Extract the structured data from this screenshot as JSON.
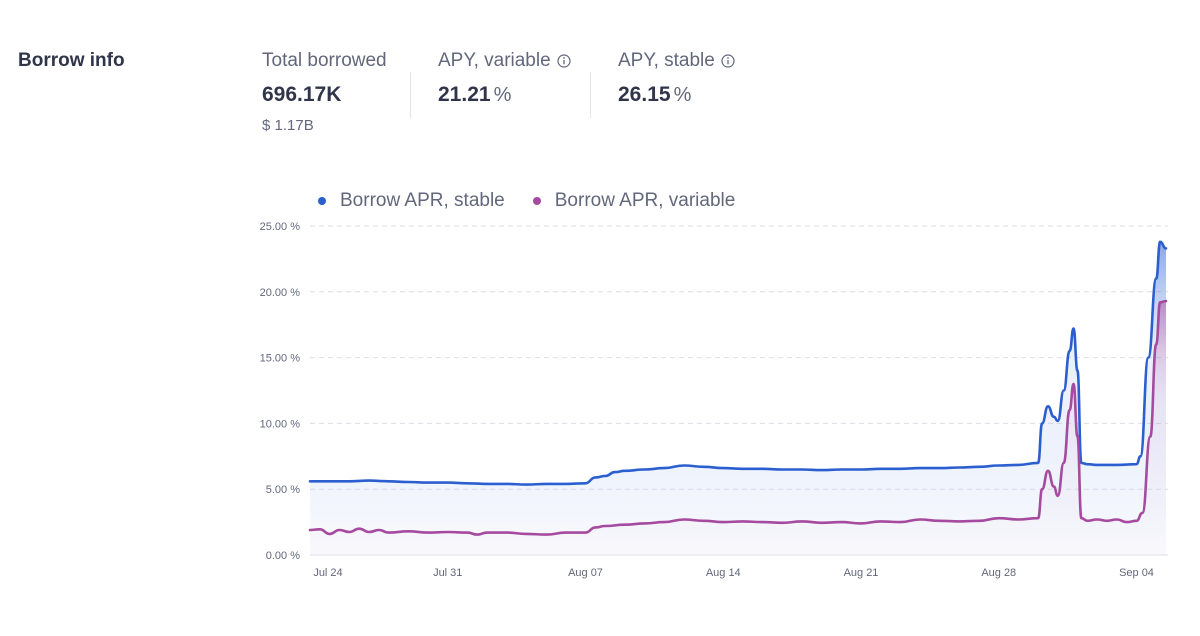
{
  "section": {
    "title": "Borrow info"
  },
  "stats": {
    "total_borrowed": {
      "label": "Total borrowed",
      "value": "696.17K",
      "sub": "$ 1.17B"
    },
    "apy_variable": {
      "label": "APY, variable",
      "value": "21.21",
      "unit": "%",
      "icon": "info-icon"
    },
    "apy_stable": {
      "label": "APY, stable",
      "value": "26.15",
      "unit": "%",
      "icon": "info-icon"
    }
  },
  "colors": {
    "stable": "#2b5fcf",
    "variable": "#a54a9e",
    "text": "#303549",
    "muted": "#62677b"
  },
  "chart_data": {
    "type": "line",
    "title": "",
    "xlabel": "",
    "ylabel": "",
    "ylim": [
      0,
      25
    ],
    "y_ticks": [
      "25.00 %",
      "20.00 %",
      "15.00 %",
      "10.00 %",
      "5.00 %",
      "0.00 %"
    ],
    "y_tick_values": [
      25,
      20,
      15,
      10,
      5,
      0
    ],
    "x_ticks": [
      "Jul 24",
      "Jul 31",
      "Aug 07",
      "Aug 14",
      "Aug 21",
      "Aug 28",
      "Sep 04"
    ],
    "x_tick_days": [
      0,
      7,
      14,
      21,
      28,
      35,
      42
    ],
    "x_range_days": [
      0,
      43.6
    ],
    "grid": true,
    "legend_position": "top-left",
    "series": [
      {
        "name": "Borrow APR, stable",
        "color": "#2b5fcf",
        "points": [
          [
            0,
            5.6
          ],
          [
            1,
            5.6
          ],
          [
            2,
            5.6
          ],
          [
            3,
            5.65
          ],
          [
            4,
            5.6
          ],
          [
            5,
            5.55
          ],
          [
            6,
            5.5
          ],
          [
            7,
            5.5
          ],
          [
            8,
            5.45
          ],
          [
            9,
            5.4
          ],
          [
            10,
            5.4
          ],
          [
            11,
            5.35
          ],
          [
            12,
            5.4
          ],
          [
            13,
            5.4
          ],
          [
            14,
            5.45
          ],
          [
            14.5,
            5.9
          ],
          [
            15,
            6.0
          ],
          [
            15.5,
            6.3
          ],
          [
            16,
            6.4
          ],
          [
            17,
            6.5
          ],
          [
            18,
            6.6
          ],
          [
            19,
            6.8
          ],
          [
            20,
            6.7
          ],
          [
            21,
            6.6
          ],
          [
            22,
            6.55
          ],
          [
            23,
            6.55
          ],
          [
            24,
            6.5
          ],
          [
            25,
            6.5
          ],
          [
            26,
            6.45
          ],
          [
            27,
            6.5
          ],
          [
            28,
            6.5
          ],
          [
            29,
            6.55
          ],
          [
            30,
            6.55
          ],
          [
            31,
            6.6
          ],
          [
            32,
            6.6
          ],
          [
            33,
            6.65
          ],
          [
            34,
            6.7
          ],
          [
            35,
            6.8
          ],
          [
            36,
            6.85
          ],
          [
            37,
            7.0
          ],
          [
            37.2,
            10.0
          ],
          [
            37.5,
            11.3
          ],
          [
            37.8,
            10.5
          ],
          [
            38,
            10.2
          ],
          [
            38.3,
            12.5
          ],
          [
            38.6,
            15.5
          ],
          [
            38.8,
            17.2
          ],
          [
            39,
            14.0
          ],
          [
            39.2,
            7.0
          ],
          [
            39.5,
            6.9
          ],
          [
            40,
            6.85
          ],
          [
            41,
            6.85
          ],
          [
            42,
            6.9
          ],
          [
            42.2,
            7.5
          ],
          [
            42.6,
            15.0
          ],
          [
            43,
            21.0
          ],
          [
            43.2,
            23.8
          ],
          [
            43.5,
            23.3
          ]
        ]
      },
      {
        "name": "Borrow APR, variable",
        "color": "#a54a9e",
        "points": [
          [
            0,
            1.9
          ],
          [
            0.5,
            1.95
          ],
          [
            1,
            1.6
          ],
          [
            1.5,
            1.9
          ],
          [
            2,
            1.75
          ],
          [
            2.5,
            2.0
          ],
          [
            3,
            1.75
          ],
          [
            3.5,
            1.9
          ],
          [
            4,
            1.7
          ],
          [
            5,
            1.8
          ],
          [
            6,
            1.7
          ],
          [
            7,
            1.75
          ],
          [
            8,
            1.7
          ],
          [
            8.5,
            1.55
          ],
          [
            9,
            1.7
          ],
          [
            10,
            1.7
          ],
          [
            11,
            1.6
          ],
          [
            12,
            1.55
          ],
          [
            13,
            1.7
          ],
          [
            14,
            1.7
          ],
          [
            14.5,
            2.1
          ],
          [
            15,
            2.2
          ],
          [
            16,
            2.3
          ],
          [
            17,
            2.4
          ],
          [
            18,
            2.5
          ],
          [
            19,
            2.7
          ],
          [
            20,
            2.6
          ],
          [
            21,
            2.5
          ],
          [
            22,
            2.55
          ],
          [
            23,
            2.5
          ],
          [
            24,
            2.45
          ],
          [
            25,
            2.55
          ],
          [
            26,
            2.45
          ],
          [
            27,
            2.5
          ],
          [
            28,
            2.4
          ],
          [
            29,
            2.55
          ],
          [
            30,
            2.5
          ],
          [
            31,
            2.7
          ],
          [
            32,
            2.6
          ],
          [
            33,
            2.55
          ],
          [
            34,
            2.6
          ],
          [
            35,
            2.8
          ],
          [
            36,
            2.7
          ],
          [
            37,
            2.8
          ],
          [
            37.2,
            5.0
          ],
          [
            37.5,
            6.4
          ],
          [
            37.8,
            5.2
          ],
          [
            38,
            4.5
          ],
          [
            38.3,
            7.0
          ],
          [
            38.6,
            11.0
          ],
          [
            38.8,
            13.0
          ],
          [
            39,
            9.0
          ],
          [
            39.2,
            2.8
          ],
          [
            39.5,
            2.6
          ],
          [
            40,
            2.7
          ],
          [
            40.5,
            2.6
          ],
          [
            41,
            2.7
          ],
          [
            41.5,
            2.5
          ],
          [
            42,
            2.6
          ],
          [
            42.3,
            3.2
          ],
          [
            42.7,
            9.0
          ],
          [
            43,
            16.0
          ],
          [
            43.2,
            19.2
          ],
          [
            43.5,
            19.3
          ]
        ]
      }
    ]
  }
}
